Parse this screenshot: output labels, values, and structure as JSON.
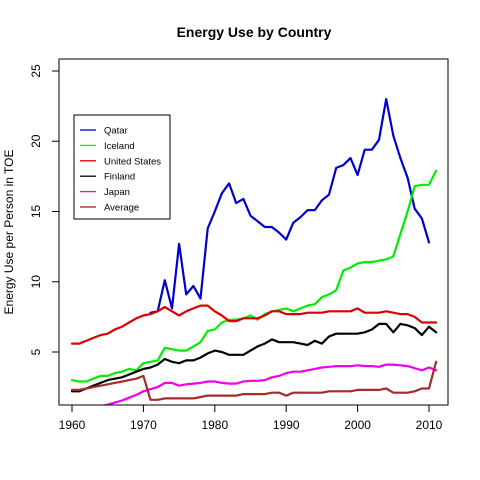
{
  "chart_data": {
    "type": "line",
    "title": "Energy Use by Country",
    "xlabel": "",
    "ylabel": "Energy Use per Person in TOE",
    "xlim": [
      1960,
      2012
    ],
    "ylim": [
      1,
      25
    ],
    "x_ticks": [
      1960,
      1970,
      1980,
      1990,
      2000,
      2010
    ],
    "y_ticks": [
      5,
      10,
      15,
      20,
      25
    ],
    "grid": false,
    "legend_position": "top-left",
    "series": [
      {
        "name": "Qatar",
        "color": "#0000CC",
        "x": [
          1971,
          1972,
          1973,
          1974,
          1975,
          1976,
          1977,
          1978,
          1979,
          1980,
          1981,
          1982,
          1983,
          1984,
          1985,
          1986,
          1987,
          1988,
          1989,
          1990,
          1991,
          1992,
          1993,
          1994,
          1995,
          1996,
          1997,
          1998,
          1999,
          2000,
          2001,
          2002,
          2003,
          2004,
          2005,
          2006,
          2007,
          2008,
          2009,
          2010
        ],
        "y": [
          7.8,
          7.9,
          10.1,
          8.1,
          12.7,
          9.1,
          9.7,
          8.8,
          13.8,
          15.0,
          16.3,
          17.0,
          15.6,
          15.9,
          14.7,
          14.3,
          13.9,
          13.9,
          13.5,
          13.0,
          14.2,
          14.6,
          15.1,
          15.1,
          15.8,
          16.2,
          18.1,
          18.3,
          18.8,
          17.6,
          19.4,
          19.4,
          20.1,
          23.0,
          20.4,
          18.8,
          17.4,
          15.2,
          14.5,
          12.8
        ]
      },
      {
        "name": "Iceland",
        "color": "#00EE00",
        "x": [
          1960,
          1961,
          1962,
          1963,
          1964,
          1965,
          1966,
          1967,
          1968,
          1969,
          1970,
          1971,
          1972,
          1973,
          1974,
          1975,
          1976,
          1977,
          1978,
          1979,
          1980,
          1981,
          1982,
          1983,
          1984,
          1985,
          1986,
          1987,
          1988,
          1989,
          1990,
          1991,
          1992,
          1993,
          1994,
          1995,
          1996,
          1997,
          1998,
          1999,
          2000,
          2001,
          2002,
          2003,
          2004,
          2005,
          2006,
          2007,
          2008,
          2009,
          2010,
          2011
        ],
        "y": [
          3.0,
          2.9,
          2.9,
          3.1,
          3.3,
          3.3,
          3.5,
          3.6,
          3.8,
          3.7,
          4.2,
          4.3,
          4.4,
          5.3,
          5.2,
          5.1,
          5.1,
          5.4,
          5.7,
          6.5,
          6.6,
          7.1,
          7.3,
          7.3,
          7.4,
          7.6,
          7.3,
          7.7,
          7.9,
          8.0,
          8.1,
          7.9,
          8.1,
          8.3,
          8.4,
          8.9,
          9.1,
          9.4,
          10.8,
          11.0,
          11.3,
          11.4,
          11.4,
          11.5,
          11.6,
          11.8,
          13.4,
          15.0,
          16.8,
          16.9,
          16.9,
          17.9
        ]
      },
      {
        "name": "United States",
        "color": "#DD0000",
        "x": [
          1960,
          1961,
          1962,
          1963,
          1964,
          1965,
          1966,
          1967,
          1968,
          1969,
          1970,
          1971,
          1972,
          1973,
          1974,
          1975,
          1976,
          1977,
          1978,
          1979,
          1980,
          1981,
          1982,
          1983,
          1984,
          1985,
          1986,
          1987,
          1988,
          1989,
          1990,
          1991,
          1992,
          1993,
          1994,
          1995,
          1996,
          1997,
          1998,
          1999,
          2000,
          2001,
          2002,
          2003,
          2004,
          2005,
          2006,
          2007,
          2008,
          2009,
          2010,
          2011
        ],
        "y": [
          5.6,
          5.6,
          5.8,
          6.0,
          6.2,
          6.3,
          6.6,
          6.8,
          7.1,
          7.4,
          7.6,
          7.7,
          7.9,
          8.2,
          7.9,
          7.6,
          7.9,
          8.1,
          8.3,
          8.3,
          7.9,
          7.6,
          7.2,
          7.2,
          7.4,
          7.4,
          7.4,
          7.6,
          7.9,
          7.9,
          7.7,
          7.7,
          7.7,
          7.8,
          7.8,
          7.8,
          7.9,
          7.9,
          7.9,
          7.9,
          8.1,
          7.8,
          7.8,
          7.8,
          7.9,
          7.8,
          7.7,
          7.7,
          7.5,
          7.1,
          7.1,
          7.1
        ]
      },
      {
        "name": "Finland",
        "color": "#000000",
        "x": [
          1960,
          1961,
          1962,
          1963,
          1964,
          1965,
          1966,
          1967,
          1968,
          1969,
          1970,
          1971,
          1972,
          1973,
          1974,
          1975,
          1976,
          1977,
          1978,
          1979,
          1980,
          1981,
          1982,
          1983,
          1984,
          1985,
          1986,
          1987,
          1988,
          1989,
          1990,
          1991,
          1992,
          1993,
          1994,
          1995,
          1996,
          1997,
          1998,
          1999,
          2000,
          2001,
          2002,
          2003,
          2004,
          2005,
          2006,
          2007,
          2008,
          2009,
          2010,
          2011
        ],
        "y": [
          2.2,
          2.2,
          2.4,
          2.6,
          2.8,
          3.0,
          3.1,
          3.2,
          3.4,
          3.6,
          3.8,
          3.9,
          4.1,
          4.5,
          4.3,
          4.2,
          4.4,
          4.4,
          4.6,
          4.9,
          5.1,
          5.0,
          4.8,
          4.8,
          4.8,
          5.1,
          5.4,
          5.6,
          5.9,
          5.7,
          5.7,
          5.7,
          5.6,
          5.5,
          5.8,
          5.6,
          6.1,
          6.3,
          6.3,
          6.3,
          6.3,
          6.4,
          6.6,
          7.0,
          7.0,
          6.4,
          7.0,
          6.9,
          6.7,
          6.2,
          6.8,
          6.4
        ]
      },
      {
        "name": "Japan",
        "color": "#EE00EE",
        "x": [
          1962,
          1963,
          1964,
          1965,
          1966,
          1967,
          1968,
          1969,
          1970,
          1971,
          1972,
          1973,
          1974,
          1975,
          1976,
          1977,
          1978,
          1979,
          1980,
          1981,
          1982,
          1983,
          1984,
          1985,
          1986,
          1987,
          1988,
          1989,
          1990,
          1991,
          1992,
          1993,
          1994,
          1995,
          1996,
          1997,
          1998,
          1999,
          2000,
          2001,
          2002,
          2003,
          2004,
          2005,
          2006,
          2007,
          2008,
          2009,
          2010,
          2011
        ],
        "y": [
          0.95,
          1.05,
          1.15,
          1.25,
          1.4,
          1.55,
          1.75,
          1.95,
          2.2,
          2.35,
          2.5,
          2.8,
          2.8,
          2.6,
          2.7,
          2.75,
          2.8,
          2.9,
          2.9,
          2.8,
          2.75,
          2.75,
          2.9,
          2.95,
          2.95,
          3.0,
          3.2,
          3.3,
          3.5,
          3.6,
          3.6,
          3.7,
          3.8,
          3.9,
          3.95,
          4.0,
          4.0,
          4.0,
          4.05,
          4.0,
          4.0,
          3.95,
          4.1,
          4.1,
          4.05,
          4.0,
          3.85,
          3.7,
          3.9,
          3.7
        ]
      },
      {
        "name": "Average",
        "color": "#A52A2A",
        "x": [
          1960,
          1961,
          1962,
          1963,
          1964,
          1965,
          1966,
          1967,
          1968,
          1969,
          1970,
          1971,
          1972,
          1973,
          1974,
          1975,
          1976,
          1977,
          1978,
          1979,
          1980,
          1981,
          1982,
          1983,
          1984,
          1985,
          1986,
          1987,
          1988,
          1989,
          1990,
          1991,
          1992,
          1993,
          1994,
          1995,
          1996,
          1997,
          1998,
          1999,
          2000,
          2001,
          2002,
          2003,
          2004,
          2005,
          2006,
          2007,
          2008,
          2009,
          2010,
          2011
        ],
        "y": [
          2.3,
          2.3,
          2.4,
          2.5,
          2.6,
          2.7,
          2.8,
          2.9,
          3.0,
          3.1,
          3.3,
          1.6,
          1.6,
          1.7,
          1.7,
          1.7,
          1.7,
          1.7,
          1.8,
          1.9,
          1.9,
          1.9,
          1.9,
          1.9,
          2.0,
          2.0,
          2.0,
          2.0,
          2.1,
          2.1,
          1.9,
          2.1,
          2.1,
          2.1,
          2.1,
          2.1,
          2.2,
          2.2,
          2.2,
          2.2,
          2.3,
          2.3,
          2.3,
          2.3,
          2.4,
          2.1,
          2.1,
          2.1,
          2.2,
          2.4,
          2.4,
          4.3
        ]
      }
    ]
  }
}
